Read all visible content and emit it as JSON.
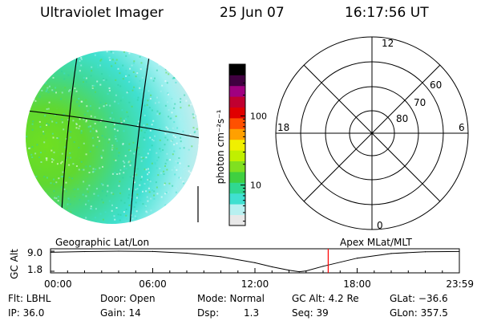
{
  "header": {
    "instrument": "Ultraviolet Imager",
    "date": "25 Jun 07",
    "time": "16:17:56 UT"
  },
  "colorbar": {
    "label": "photon cm⁻²s⁻¹",
    "ticks": [
      {
        "value": 10,
        "label": "10"
      },
      {
        "value": 100,
        "label": "100"
      }
    ],
    "scale": "log",
    "colors": [
      "#e8e8e8",
      "#b8f0f0",
      "#40e0d0",
      "#30d890",
      "#40d040",
      "#80e020",
      "#c0f000",
      "#f0f000",
      "#ffa000",
      "#ff5000",
      "#e00000",
      "#c00030",
      "#a00080",
      "#400040",
      "#000000"
    ]
  },
  "polar_plot": {
    "clock_labels": [
      {
        "text": "12",
        "pos": "top"
      },
      {
        "text": "18",
        "pos": "left"
      },
      {
        "text": "6",
        "pos": "right"
      },
      {
        "text": "0",
        "pos": "bottom"
      }
    ],
    "lat_labels": [
      "60",
      "70",
      "80"
    ]
  },
  "timeline": {
    "left_label": "Geographic Lat/Lon",
    "right_label": "Apex MLat/MLT",
    "ylabel": "GC Alt",
    "ytick_top": "9.0",
    "ytick_bottom": "1.8",
    "current_time_hours": 16.3
  },
  "chart_data": {
    "type": "line",
    "title": "",
    "xlabel": "",
    "ylabel": "GC Alt",
    "x_tick_labels": [
      "00:00",
      "06:00",
      "12:00",
      "18:00",
      "23:59"
    ],
    "xlim": [
      0,
      24
    ],
    "ylim": [
      1.8,
      9.0
    ],
    "series": [
      {
        "x": [
          0,
          2,
          4,
          6,
          8,
          10,
          12,
          13,
          14,
          14.6,
          15,
          16,
          18,
          20,
          22,
          24
        ],
        "values": [
          8.6,
          8.85,
          9.0,
          8.9,
          8.3,
          7.1,
          5.0,
          3.6,
          2.4,
          1.9,
          2.2,
          3.8,
          6.6,
          8.2,
          8.8,
          8.9
        ]
      }
    ]
  },
  "status": {
    "flt": "Flt: LBHL",
    "ip": "IP: 36.0",
    "door": "Door: Open",
    "gain": "Gain: 14",
    "mode": "Mode: Normal",
    "dsp_label": "Dsp:",
    "dsp_value": "1.3",
    "gc_alt": "GC Alt: 4.2 Re",
    "seq": "Seq: 39",
    "glat": "GLat: −36.6",
    "glon": "GLon: 357.5"
  }
}
